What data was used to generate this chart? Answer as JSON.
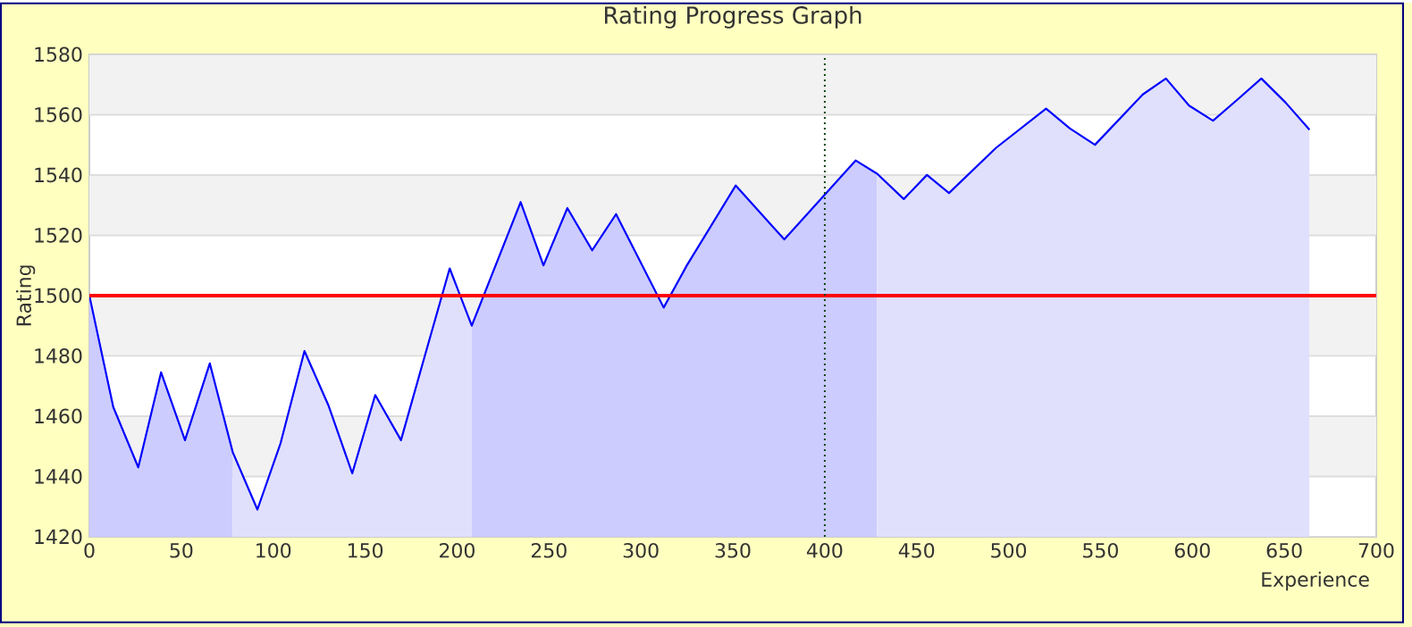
{
  "chart_data": {
    "type": "line",
    "title": "Rating Progress Graph",
    "xlabel": "Experience",
    "ylabel": "Rating",
    "xlim": [
      0,
      700
    ],
    "ylim": [
      1420,
      1580
    ],
    "xticks": [
      0,
      50,
      100,
      150,
      200,
      250,
      300,
      350,
      400,
      450,
      500,
      550,
      600,
      650,
      700
    ],
    "yticks": [
      1420,
      1440,
      1460,
      1480,
      1500,
      1520,
      1540,
      1560,
      1580
    ],
    "grid": "y",
    "marker": "none",
    "bands": [
      {
        "axis": "y",
        "from": 1440,
        "to": 1460,
        "color": "#f2f2f2"
      },
      {
        "axis": "y",
        "from": 1480,
        "to": 1500,
        "color": "#f2f2f2"
      },
      {
        "axis": "y",
        "from": 1520,
        "to": 1540,
        "color": "#f2f2f2"
      },
      {
        "axis": "y",
        "from": 1560,
        "to": 1580,
        "color": "#f2f2f2"
      }
    ],
    "ref_lines": [
      {
        "axis": "y",
        "value": 1500,
        "color": "#ff0000",
        "line_style": "solid"
      },
      {
        "axis": "x",
        "value": 400,
        "color": "#004000",
        "line_style": "dotted"
      }
    ],
    "series": [
      {
        "type": "area",
        "color": "#ccccff",
        "x": [
          0,
          13,
          26.6,
          39,
          52,
          65.5,
          78
        ],
        "values": [
          1500,
          1463,
          1443,
          1474.5,
          1452,
          1477.5,
          1448
        ]
      },
      {
        "type": "area",
        "color": "#e0e0fc",
        "x": [
          78,
          91.4,
          104,
          117,
          130,
          143,
          155.5,
          169.5,
          182,
          196,
          208
        ],
        "values": [
          1448,
          1429,
          1451,
          1481.6,
          1463.6,
          1441,
          1467,
          1452,
          1479,
          1509,
          1490
        ]
      },
      {
        "type": "area",
        "color": "#ccccff",
        "x": [
          208,
          234.6,
          247,
          260,
          273.5,
          286.5,
          312.4,
          325,
          351.6,
          378,
          416.8,
          428.5
        ],
        "values": [
          1490,
          1531,
          1510,
          1529,
          1515,
          1527,
          1496,
          1510,
          1536.5,
          1518.6,
          1544.8,
          1540.4
        ]
      },
      {
        "type": "area",
        "color": "#e0e0fc",
        "x": [
          428.5,
          443,
          455.6,
          467.6,
          493.2,
          520.4,
          533.4,
          547,
          573,
          585.6,
          598.2,
          611.2,
          624.5,
          637.5,
          650.7,
          663.7
        ],
        "values": [
          1540.4,
          1532,
          1540,
          1534,
          1549,
          1562,
          1555.4,
          1550,
          1566.7,
          1572,
          1563,
          1558,
          1565,
          1572,
          1564,
          1555
        ]
      },
      {
        "color": "#0000ff",
        "line_style": "solid",
        "x": [
          0,
          13,
          26.6,
          39,
          52,
          65.5,
          78,
          91.4,
          104,
          117,
          130,
          143,
          155.5,
          169.5,
          182,
          196,
          208,
          234.6,
          247,
          260,
          273.5,
          286.5,
          312.4,
          325,
          351.6,
          378,
          416.8,
          428.5,
          443,
          455.6,
          467.6,
          493.2,
          520.4,
          533.4,
          547,
          573,
          585.6,
          598.2,
          611.2,
          624.5,
          637.5,
          650.7,
          663.7
        ],
        "values": [
          1500,
          1463,
          1443,
          1474.5,
          1452,
          1477.5,
          1448,
          1429,
          1451,
          1481.6,
          1463.6,
          1441,
          1467,
          1452,
          1479,
          1509,
          1490,
          1531,
          1510,
          1529,
          1515,
          1527,
          1496,
          1510,
          1536.5,
          1518.6,
          1544.8,
          1540.4,
          1532,
          1540,
          1534,
          1549,
          1562,
          1555.4,
          1550,
          1566.7,
          1572,
          1563,
          1558,
          1565,
          1572,
          1564,
          1555
        ]
      }
    ]
  }
}
